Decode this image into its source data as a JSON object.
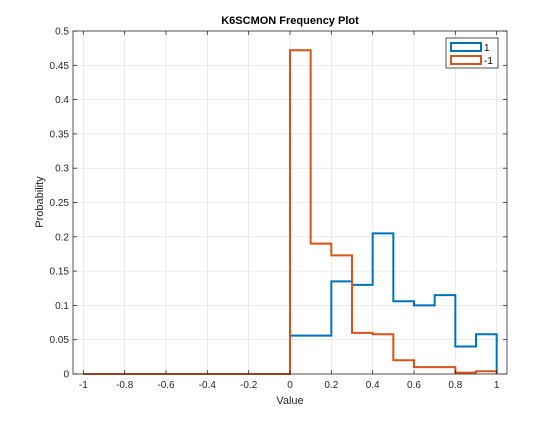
{
  "chart_data": {
    "type": "histogram",
    "title": "K6SCMON Frequency Plot",
    "xlabel": "Value",
    "ylabel": "Probability",
    "xlim": [
      -1.05,
      1.05
    ],
    "ylim": [
      0,
      0.5
    ],
    "xticks": [
      -1,
      -0.8,
      -0.6,
      -0.4,
      -0.2,
      0,
      0.2,
      0.4,
      0.6,
      0.8,
      1
    ],
    "xtick_labels": [
      "-1",
      "-0.8",
      "-0.6",
      "-0.4",
      "-0.2",
      "0",
      "0.2",
      "0.4",
      "0.6",
      "0.8",
      "1"
    ],
    "yticks": [
      0,
      0.05,
      0.1,
      0.15,
      0.2,
      0.25,
      0.3,
      0.35,
      0.4,
      0.45,
      0.5
    ],
    "ytick_labels": [
      "0",
      "0.05",
      "0.1",
      "0.15",
      "0.2",
      "0.25",
      "0.3",
      "0.35",
      "0.4",
      "0.45",
      "0.5"
    ],
    "grid": true,
    "legend_position": "top-right",
    "bin_edges": [
      -1,
      -0.9,
      -0.8,
      -0.7,
      -0.6,
      -0.5,
      -0.4,
      -0.3,
      -0.2,
      -0.1,
      0,
      0.1,
      0.2,
      0.3,
      0.4,
      0.5,
      0.6,
      0.7,
      0.8,
      0.9,
      1
    ],
    "series": [
      {
        "name": "1",
        "color": "#0072BD",
        "values": [
          0,
          0,
          0,
          0,
          0,
          0,
          0,
          0,
          0,
          0,
          0.056,
          0.056,
          0.135,
          0.13,
          0.205,
          0.106,
          0.1,
          0.115,
          0.04,
          0.058
        ]
      },
      {
        "name": "-1",
        "color": "#D95319",
        "values": [
          0,
          0,
          0,
          0,
          0,
          0,
          0,
          0,
          0,
          0,
          0.472,
          0.19,
          0.173,
          0.06,
          0.058,
          0.02,
          0.01,
          0.01,
          0.002,
          0.004
        ]
      }
    ]
  }
}
